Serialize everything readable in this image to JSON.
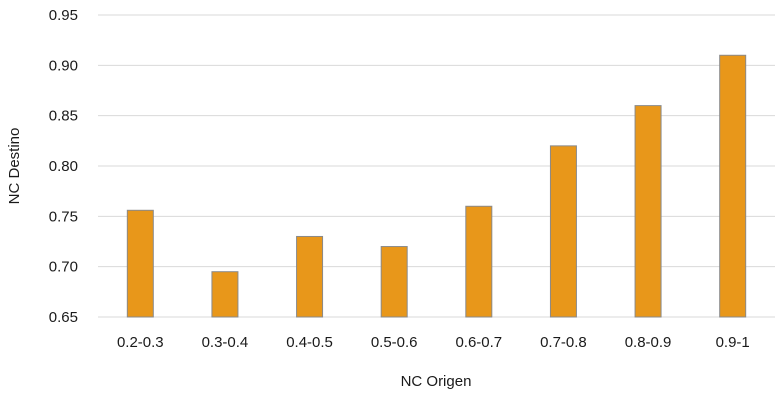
{
  "chart_data": {
    "type": "bar",
    "title": "",
    "xlabel": "NC Origen",
    "ylabel": "NC Destino",
    "categories": [
      "0.2-0.3",
      "0.3-0.4",
      "0.4-0.5",
      "0.5-0.6",
      "0.6-0.7",
      "0.7-0.8",
      "0.8-0.9",
      "0.9-1"
    ],
    "series": [
      {
        "values": [
          0.756,
          0.695,
          0.73,
          0.72,
          0.76,
          0.82,
          0.86,
          0.91
        ]
      }
    ],
    "ylim": [
      0.65,
      0.95
    ],
    "yticks": [
      "0.65",
      "0.70",
      "0.75",
      "0.80",
      "0.85",
      "0.90",
      "0.95"
    ],
    "grid": true,
    "legend": "none",
    "colors": {
      "bar_fill": "#e8971a",
      "bar_stroke": "#8a8a8a",
      "grid": "#d9d9d9"
    }
  }
}
